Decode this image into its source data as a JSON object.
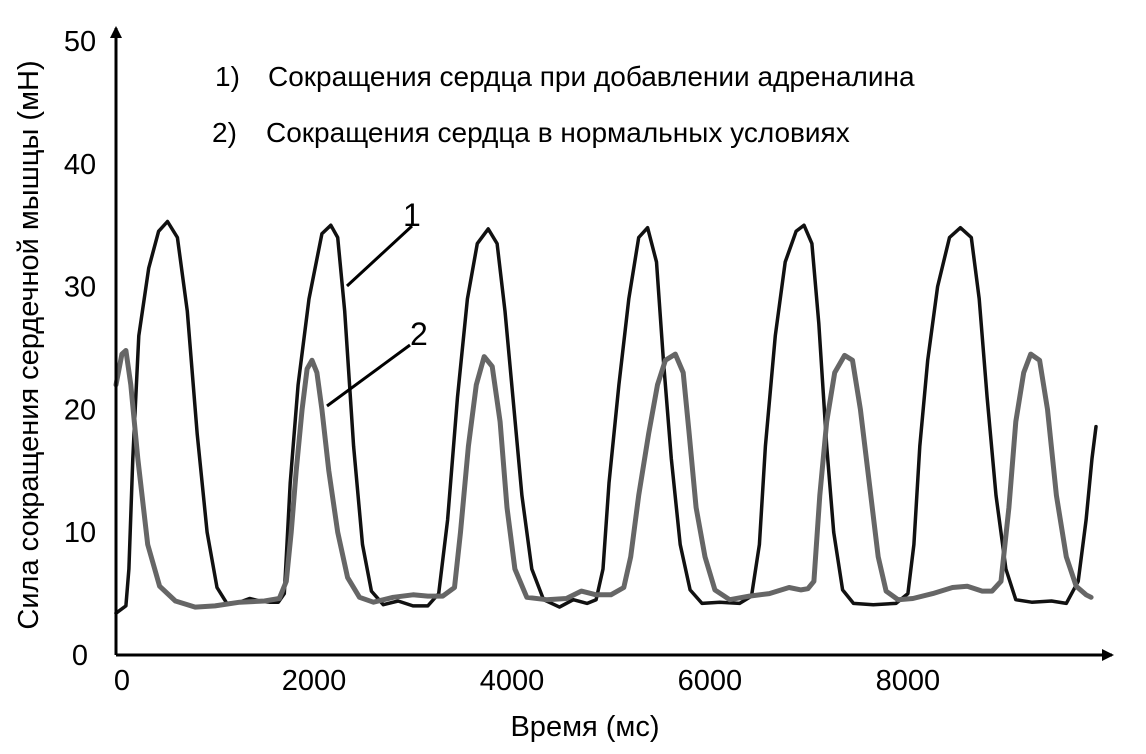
{
  "chart_data": {
    "type": "line",
    "title": "",
    "xlabel": "Время (мс)",
    "ylabel": "Сила сокращения сердечной мышцы (мН)",
    "xlim": [
      0,
      9900
    ],
    "ylim": [
      0,
      50
    ],
    "x_ticks": [
      "0",
      "2000",
      "4000",
      "6000",
      "8000"
    ],
    "y_ticks": [
      "0",
      "10",
      "20",
      "30",
      "40",
      "50"
    ],
    "grid": false,
    "legend_position": "top",
    "legend": [
      {
        "number": "1)",
        "label": "Сокращения сердца при добавлении адреналина"
      },
      {
        "number": "2)",
        "label": "Сокращения сердца в нормальных условиях"
      }
    ],
    "callouts": [
      {
        "label": "1",
        "series": 0
      },
      {
        "label": "2",
        "series": 1
      }
    ],
    "series": [
      {
        "color": "#111111",
        "points": [
          [
            0,
            3.4
          ],
          [
            100,
            4.0
          ],
          [
            130,
            7
          ],
          [
            170,
            16
          ],
          [
            230,
            26
          ],
          [
            330,
            31.5
          ],
          [
            430,
            34.5
          ],
          [
            520,
            35.3
          ],
          [
            620,
            34
          ],
          [
            720,
            28
          ],
          [
            820,
            18
          ],
          [
            920,
            10
          ],
          [
            1020,
            5.5
          ],
          [
            1120,
            4.2
          ],
          [
            1250,
            4.3
          ],
          [
            1350,
            4.6
          ],
          [
            1450,
            4.4
          ],
          [
            1550,
            4.3
          ],
          [
            1640,
            4.3
          ],
          [
            1700,
            5
          ],
          [
            1720,
            8
          ],
          [
            1760,
            14
          ],
          [
            1840,
            22
          ],
          [
            1950,
            29
          ],
          [
            2080,
            34.3
          ],
          [
            2170,
            35
          ],
          [
            2240,
            34
          ],
          [
            2310,
            28
          ],
          [
            2400,
            17
          ],
          [
            2490,
            9
          ],
          [
            2580,
            5.2
          ],
          [
            2700,
            4.1
          ],
          [
            2850,
            4.4
          ],
          [
            3000,
            4.0
          ],
          [
            3150,
            4.0
          ],
          [
            3260,
            5
          ],
          [
            3350,
            11
          ],
          [
            3450,
            21
          ],
          [
            3550,
            29
          ],
          [
            3650,
            33.5
          ],
          [
            3760,
            34.7
          ],
          [
            3850,
            33.5
          ],
          [
            3930,
            28
          ],
          [
            4010,
            21
          ],
          [
            4100,
            13
          ],
          [
            4200,
            7
          ],
          [
            4320,
            4.5
          ],
          [
            4480,
            3.9
          ],
          [
            4620,
            4.5
          ],
          [
            4760,
            4.2
          ],
          [
            4850,
            4.5
          ],
          [
            4920,
            7
          ],
          [
            4980,
            14
          ],
          [
            5080,
            22
          ],
          [
            5180,
            29
          ],
          [
            5280,
            34
          ],
          [
            5370,
            34.8
          ],
          [
            5460,
            32
          ],
          [
            5530,
            24
          ],
          [
            5610,
            16
          ],
          [
            5700,
            9
          ],
          [
            5800,
            5.3
          ],
          [
            5920,
            4.2
          ],
          [
            6100,
            4.3
          ],
          [
            6300,
            4.2
          ],
          [
            6420,
            4.8
          ],
          [
            6500,
            9
          ],
          [
            6560,
            17
          ],
          [
            6660,
            26
          ],
          [
            6760,
            32
          ],
          [
            6870,
            34.5
          ],
          [
            6950,
            35
          ],
          [
            7030,
            33.5
          ],
          [
            7100,
            27
          ],
          [
            7180,
            17
          ],
          [
            7250,
            10
          ],
          [
            7340,
            5.3
          ],
          [
            7450,
            4.2
          ],
          [
            7650,
            4.1
          ],
          [
            7880,
            4.2
          ],
          [
            8000,
            5
          ],
          [
            8060,
            9
          ],
          [
            8120,
            17
          ],
          [
            8200,
            24
          ],
          [
            8300,
            30
          ],
          [
            8420,
            34
          ],
          [
            8530,
            34.8
          ],
          [
            8640,
            34
          ],
          [
            8720,
            29
          ],
          [
            8800,
            21
          ],
          [
            8890,
            13
          ],
          [
            8990,
            7
          ],
          [
            9090,
            4.5
          ],
          [
            9250,
            4.3
          ],
          [
            9450,
            4.4
          ],
          [
            9600,
            4.2
          ],
          [
            9720,
            6
          ],
          [
            9800,
            11
          ],
          [
            9860,
            16
          ],
          [
            9900,
            18.6
          ]
        ]
      },
      {
        "color": "#666666",
        "points": [
          [
            0,
            22
          ],
          [
            60,
            24.5
          ],
          [
            100,
            24.8
          ],
          [
            150,
            22
          ],
          [
            220,
            16
          ],
          [
            320,
            9
          ],
          [
            440,
            5.6
          ],
          [
            600,
            4.4
          ],
          [
            800,
            3.9
          ],
          [
            1000,
            4.0
          ],
          [
            1250,
            4.3
          ],
          [
            1500,
            4.4
          ],
          [
            1650,
            4.6
          ],
          [
            1720,
            6
          ],
          [
            1770,
            10
          ],
          [
            1820,
            15
          ],
          [
            1880,
            20
          ],
          [
            1930,
            23.3
          ],
          [
            1980,
            24
          ],
          [
            2030,
            23
          ],
          [
            2080,
            20
          ],
          [
            2150,
            15
          ],
          [
            2240,
            10
          ],
          [
            2340,
            6.3
          ],
          [
            2460,
            4.7
          ],
          [
            2600,
            4.3
          ],
          [
            2800,
            4.7
          ],
          [
            3000,
            4.9
          ],
          [
            3150,
            4.8
          ],
          [
            3300,
            4.8
          ],
          [
            3420,
            5.5
          ],
          [
            3480,
            10
          ],
          [
            3560,
            17
          ],
          [
            3640,
            22
          ],
          [
            3720,
            24.3
          ],
          [
            3800,
            23.5
          ],
          [
            3880,
            19
          ],
          [
            3950,
            12
          ],
          [
            4030,
            7
          ],
          [
            4150,
            4.7
          ],
          [
            4350,
            4.5
          ],
          [
            4550,
            4.6
          ],
          [
            4700,
            5.2
          ],
          [
            4850,
            4.9
          ],
          [
            5000,
            4.9
          ],
          [
            5130,
            5.5
          ],
          [
            5200,
            8
          ],
          [
            5280,
            13
          ],
          [
            5380,
            18
          ],
          [
            5470,
            22
          ],
          [
            5550,
            24
          ],
          [
            5650,
            24.5
          ],
          [
            5730,
            23
          ],
          [
            5790,
            18
          ],
          [
            5860,
            12
          ],
          [
            5950,
            8
          ],
          [
            6050,
            5.3
          ],
          [
            6200,
            4.5
          ],
          [
            6400,
            4.8
          ],
          [
            6600,
            5
          ],
          [
            6800,
            5.5
          ],
          [
            6920,
            5.3
          ],
          [
            6990,
            5.4
          ],
          [
            7050,
            6
          ],
          [
            7110,
            13
          ],
          [
            7180,
            19
          ],
          [
            7260,
            23
          ],
          [
            7360,
            24.4
          ],
          [
            7440,
            24
          ],
          [
            7520,
            20
          ],
          [
            7610,
            14
          ],
          [
            7700,
            8
          ],
          [
            7780,
            5.2
          ],
          [
            7900,
            4.5
          ],
          [
            8050,
            4.6
          ],
          [
            8250,
            5
          ],
          [
            8450,
            5.5
          ],
          [
            8600,
            5.6
          ],
          [
            8750,
            5.2
          ],
          [
            8850,
            5.2
          ],
          [
            8940,
            6
          ],
          [
            9020,
            12
          ],
          [
            9090,
            19
          ],
          [
            9170,
            23
          ],
          [
            9240,
            24.5
          ],
          [
            9330,
            24
          ],
          [
            9410,
            20
          ],
          [
            9500,
            13
          ],
          [
            9600,
            8
          ],
          [
            9700,
            5.6
          ],
          [
            9800,
            4.9
          ],
          [
            9850,
            4.7
          ]
        ]
      }
    ]
  }
}
